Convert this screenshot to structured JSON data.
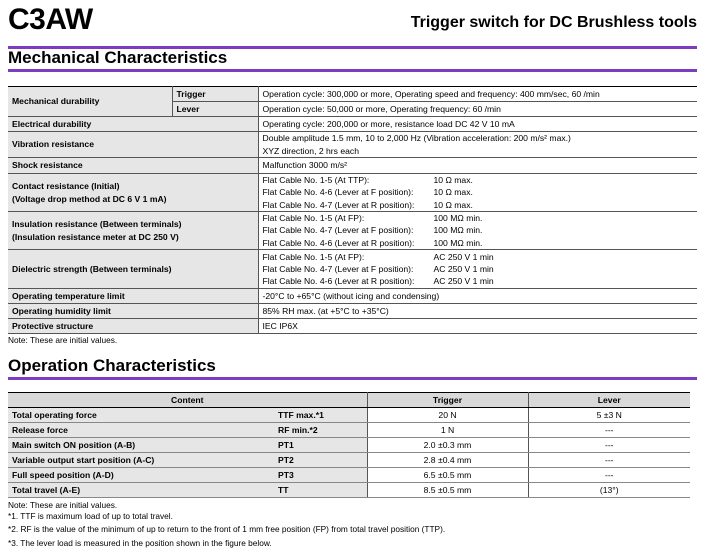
{
  "header": {
    "product": "C3AW",
    "subtitle": "Trigger switch for DC Brushless tools"
  },
  "accent_color": "#7e3cc1",
  "mechanical": {
    "title": "Mechanical Characteristics",
    "rows": [
      {
        "label": "Mechanical durability",
        "sub": [
          {
            "label": "Trigger",
            "value": "Operation cycle: 300,000 or more, Operating speed and frequency: 400 mm/sec, 60 /min"
          },
          {
            "label": "Lever",
            "value": "Operation cycle: 50,000 or more, Operating frequency: 60 /min"
          }
        ]
      },
      {
        "label": "Electrical durability",
        "value": "Operating cycle: 200,000 or more, resistance load DC 42 V 10 mA"
      },
      {
        "label": "Vibration resistance",
        "lines": [
          "Double amplitude 1.5 mm, 10 to 2,000 Hz (Vibration acceleration: 200 m/s² max.)",
          "XYZ direction, 2 hrs each"
        ]
      },
      {
        "label": "Shock resistance",
        "value": "Malfunction 3000 m/s²"
      },
      {
        "label": "Contact resistance (Initial)",
        "label2": "(Voltage drop method at DC 6 V 1 mA)",
        "pairs": [
          [
            "Flat Cable No. 1-5 (At TTP):",
            "10 Ω max."
          ],
          [
            "Flat Cable No. 4-6 (Lever at F position):",
            "10 Ω max."
          ],
          [
            "Flat Cable No. 4-7 (Lever at R position):",
            "10 Ω max."
          ]
        ]
      },
      {
        "label": "Insulation resistance (Between terminals)",
        "label2": "(Insulation resistance meter at DC 250 V)",
        "pairs": [
          [
            "Flat Cable No. 1-5 (At FP):",
            "100 MΩ min."
          ],
          [
            "Flat Cable No. 4-7 (Lever at F position):",
            "100 MΩ min."
          ],
          [
            "Flat Cable No. 4-6 (Lever at R position):",
            "100 MΩ min."
          ]
        ]
      },
      {
        "label": "Dielectric strength (Between terminals)",
        "pairs": [
          [
            "Flat Cable No. 1-5 (At FP):",
            "AC 250 V 1 min"
          ],
          [
            "Flat Cable No. 4-7 (Lever at F position):",
            "AC 250 V 1 min"
          ],
          [
            "Flat Cable No. 4-6 (Lever at R position):",
            "AC 250 V 1 min"
          ]
        ]
      },
      {
        "label": "Operating temperature limit",
        "value": "-20°C to +65°C (without icing and condensing)"
      },
      {
        "label": "Operating humidity limit",
        "value": "85% RH max. (at +5°C to +35°C)"
      },
      {
        "label": "Protective structure",
        "value": "IEC IP6X"
      }
    ],
    "note": "Note:  These are initial values."
  },
  "operation": {
    "title": "Operation Characteristics",
    "columns": [
      "Content",
      "Trigger",
      "Lever"
    ],
    "rows": [
      [
        "Total operating force",
        "TTF max.*1",
        "20 N",
        "5 ±3 N"
      ],
      [
        "Release force",
        "RF min.*2",
        "1 N",
        "---"
      ],
      [
        "Main switch ON position (A-B)",
        "PT1",
        "2.0 ±0.3 mm",
        "---"
      ],
      [
        "Variable output start position (A-C)",
        "PT2",
        "2.8 ±0.4 mm",
        "---"
      ],
      [
        "Full speed position (A-D)",
        "PT3",
        "6.5 ±0.5 mm",
        "---"
      ],
      [
        "Total travel (A-E)",
        "TT",
        "8.5 ±0.5 mm",
        "(13°)"
      ]
    ],
    "notes": [
      "Note:  These are initial values.",
      "*1.  TTF is maximum load of up to total travel.",
      "*2.  RF is the value of the minimum of up to return to the front of 1 mm free position (FP) from total travel position (TTP).",
      "*3.  The lever load is measured in the position shown in the figure below."
    ]
  }
}
